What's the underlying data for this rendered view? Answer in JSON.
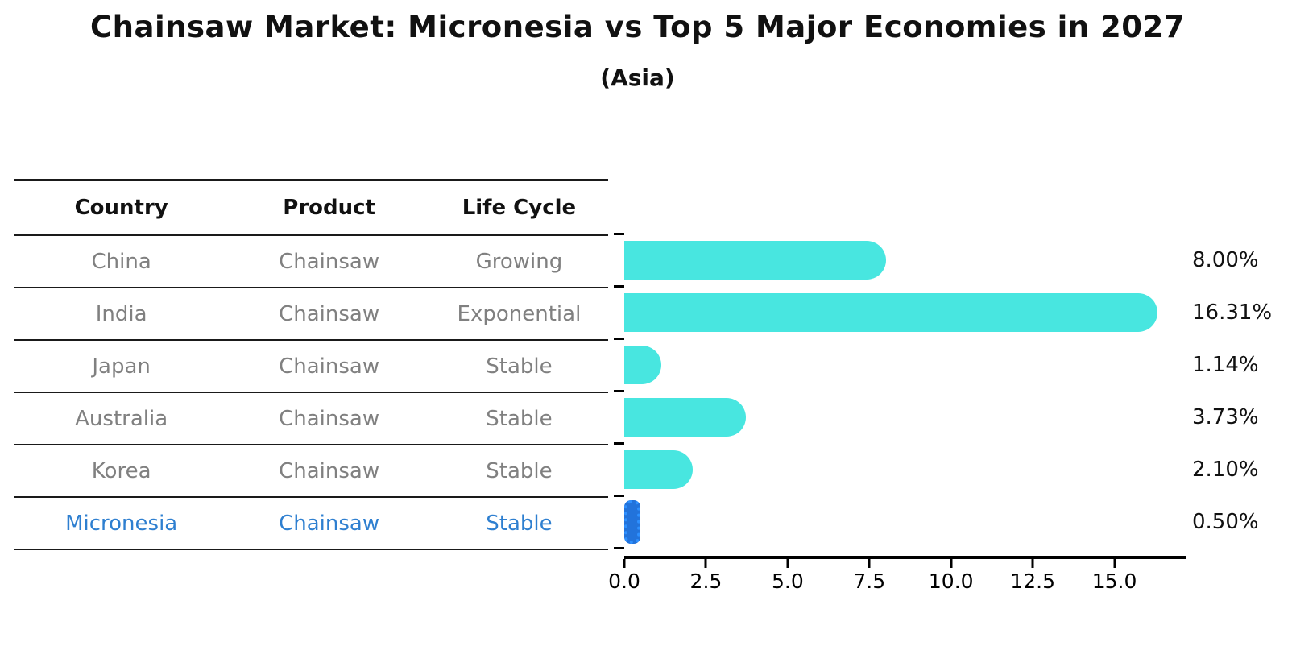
{
  "title": "Chainsaw Market: Micronesia vs Top 5 Major Economies in 2027",
  "subtitle": "(Asia)",
  "table": {
    "headers": [
      "Country",
      "Product",
      "Life Cycle"
    ],
    "rows": [
      {
        "country": "China",
        "product": "Chainsaw",
        "life_cycle": "Growing",
        "highlight": false
      },
      {
        "country": "India",
        "product": "Chainsaw",
        "life_cycle": "Exponential",
        "highlight": false
      },
      {
        "country": "Japan",
        "product": "Chainsaw",
        "life_cycle": "Stable",
        "highlight": false
      },
      {
        "country": "Australia",
        "product": "Chainsaw",
        "life_cycle": "Stable",
        "highlight": false
      },
      {
        "country": "Korea",
        "product": "Chainsaw",
        "life_cycle": "Stable",
        "highlight": false
      },
      {
        "country": "Micronesia",
        "product": "Chainsaw",
        "life_cycle": "Stable",
        "highlight": true
      }
    ]
  },
  "chart_data": {
    "type": "bar",
    "orientation": "horizontal",
    "title": "Chainsaw Market: Micronesia vs Top 5 Major Economies in 2027",
    "subtitle": "(Asia)",
    "categories": [
      "China",
      "India",
      "Japan",
      "Australia",
      "Korea",
      "Micronesia"
    ],
    "values": [
      8.0,
      16.31,
      1.14,
      3.73,
      2.1,
      0.5
    ],
    "value_labels": [
      "8.00%",
      "16.31%",
      "1.14%",
      "3.73%",
      "2.10%",
      "0.50%"
    ],
    "highlight_index": 5,
    "xlabel": "",
    "ylabel": "",
    "xlim": [
      0,
      17.13
    ],
    "x_ticks": [
      0.0,
      2.5,
      5.0,
      7.5,
      10.0,
      12.5,
      15.0
    ],
    "x_tick_labels": [
      "0.0",
      "2.5",
      "5.0",
      "7.5",
      "10.0",
      "12.5",
      "15.0"
    ],
    "grid": false,
    "legend": false
  },
  "colors": {
    "bar_cyan": "#48E6E0",
    "bar_blue": "#2273DB",
    "bar_blue_edge": "#2E90FF",
    "highlight_text": "#2E7FD0",
    "muted_text": "#808080",
    "dark_text": "#111111"
  }
}
